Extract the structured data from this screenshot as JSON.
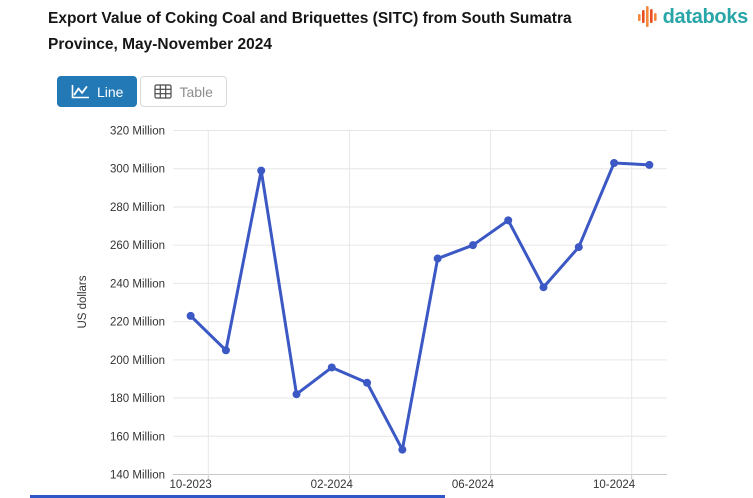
{
  "header": {
    "title": "Export Value of Coking Coal and Briquettes (SITC) from South Sumatra Province, May-November 2024",
    "logo_text": "databoks"
  },
  "toolbar": {
    "line_label": "Line",
    "table_label": "Table"
  },
  "colors": {
    "series_line": "#3b58c4",
    "active_button": "#2379b6",
    "logo_teal": "#29a6a8",
    "logo_orange_dark": "#e84e1f",
    "logo_orange_light": "#f6883e",
    "gridline": "#e6e6e6",
    "axis_line": "#c9c9c9",
    "tick_text": "#343434",
    "bottom_bar": "#2e56c9"
  },
  "chart_data": {
    "type": "line",
    "title": "Export Value of Coking Coal and Briquettes (SITC) from South Sumatra Province, May-November 2024",
    "xlabel": "",
    "ylabel": "US dollars",
    "unit": "Million US dollars",
    "x": [
      "10-2023",
      "11-2023",
      "12-2023",
      "01-2024",
      "02-2024",
      "03-2024",
      "04-2024",
      "05-2024",
      "06-2024",
      "07-2024",
      "08-2024",
      "09-2024",
      "10-2024",
      "11-2024"
    ],
    "values": [
      223,
      205,
      299,
      182,
      196,
      188,
      153,
      253,
      260,
      273,
      238,
      259,
      303,
      302
    ],
    "ylim": [
      140,
      320
    ],
    "y_tick_values": [
      140,
      160,
      180,
      200,
      220,
      240,
      260,
      280,
      300,
      320
    ],
    "y_tick_suffix": " Million",
    "x_axis_ticks": [
      {
        "index": 0,
        "label": "10-2023"
      },
      {
        "index": 4,
        "label": "02-2024"
      },
      {
        "index": 8,
        "label": "06-2024"
      },
      {
        "index": 12,
        "label": "10-2024"
      }
    ],
    "grid": true,
    "legend": false,
    "series_color": "#3b58c4"
  }
}
